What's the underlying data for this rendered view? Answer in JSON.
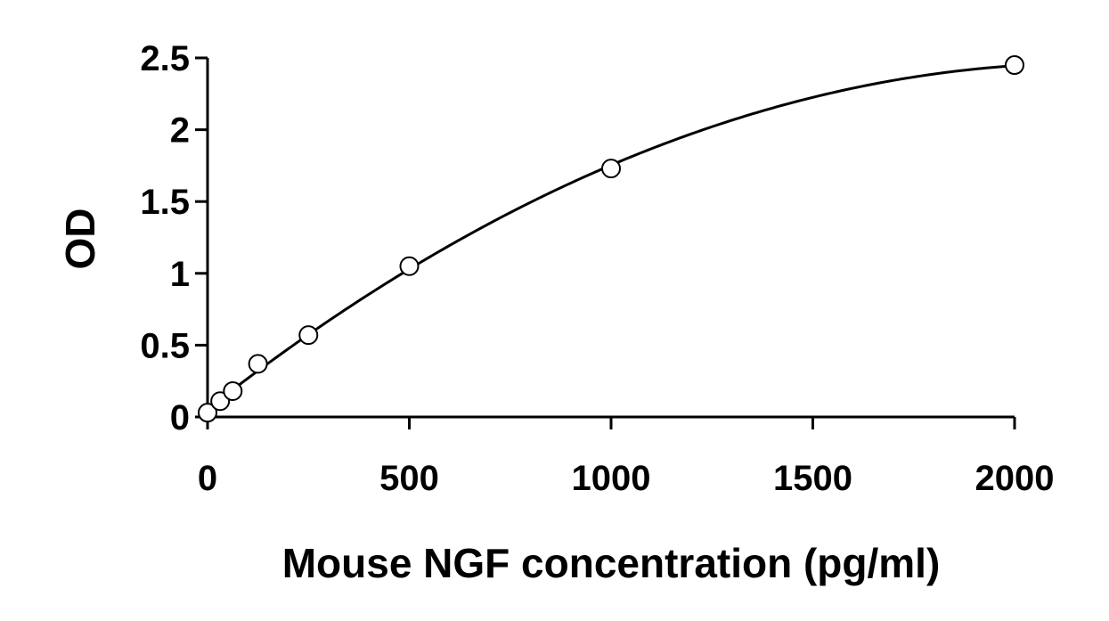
{
  "chart_data": {
    "type": "scatter",
    "title": "",
    "xlabel": "Mouse NGF concentration (pg/ml)",
    "ylabel": "OD",
    "xlim": [
      0,
      2000
    ],
    "ylim": [
      0,
      2.5
    ],
    "x_ticks": [
      "0",
      "500",
      "1000",
      "1500",
      "2000"
    ],
    "y_ticks": [
      "0",
      "0.5",
      "1",
      "1.5",
      "2",
      "2.5"
    ],
    "grid": false,
    "legend": "none",
    "series": [
      {
        "points": [
          {
            "x": 0,
            "y": 0.03
          },
          {
            "x": 31.25,
            "y": 0.11
          },
          {
            "x": 62.5,
            "y": 0.18
          },
          {
            "x": 125,
            "y": 0.37
          },
          {
            "x": 250,
            "y": 0.57
          },
          {
            "x": 500,
            "y": 1.05
          },
          {
            "x": 1000,
            "y": 1.73
          },
          {
            "x": 2000,
            "y": 2.45
          }
        ],
        "marker": "open-circle",
        "color": "#000000",
        "fit": "smooth-curve"
      }
    ]
  }
}
